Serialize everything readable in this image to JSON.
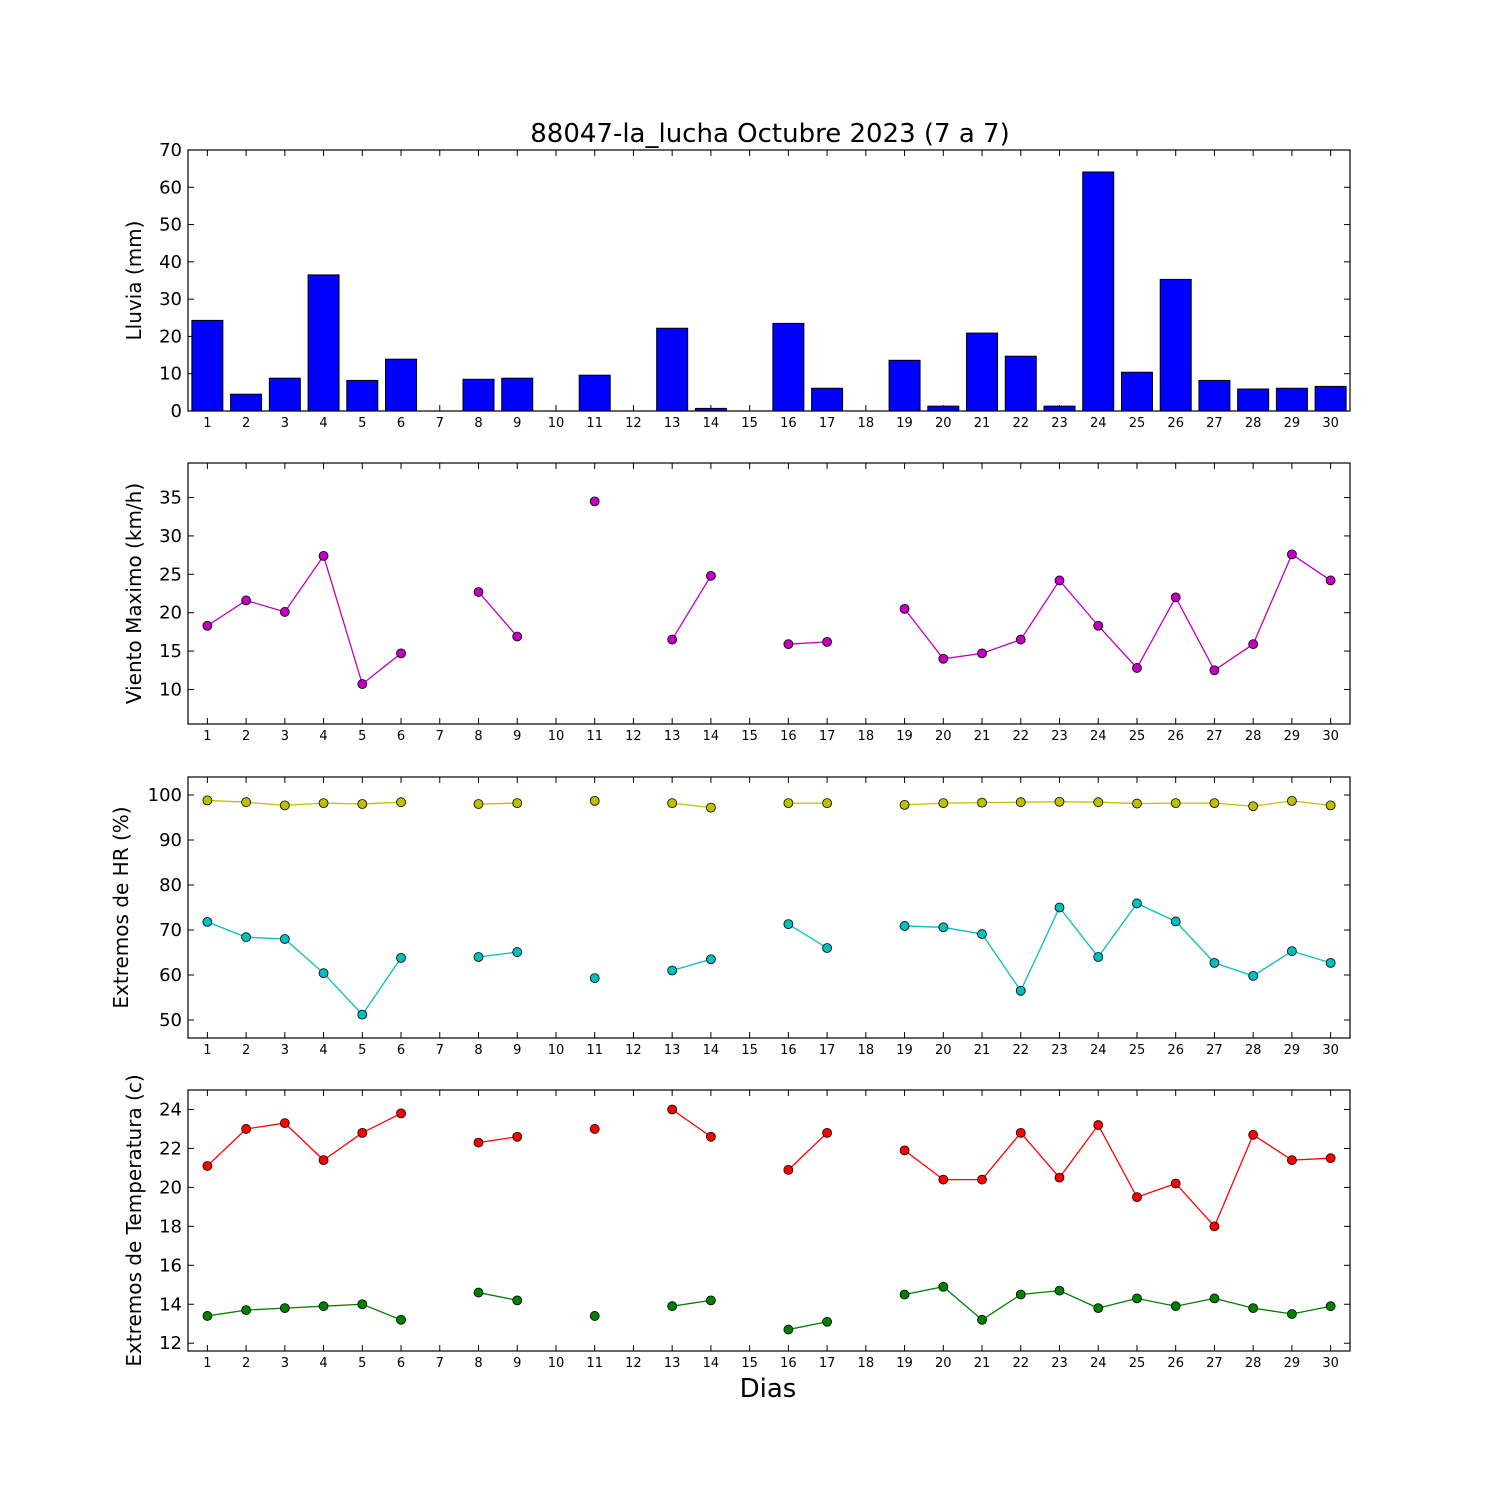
{
  "figure": {
    "title": "88047-la_lucha Octubre 2023  (7 a 7)",
    "xlabel": "Dias"
  },
  "chart_data": [
    {
      "type": "bar",
      "ylabel": "Lluvia (mm)",
      "ylim": [
        0,
        70
      ],
      "yticks": [
        0,
        10,
        20,
        30,
        40,
        50,
        60,
        70
      ],
      "xlim": [
        0.5,
        30.5
      ],
      "categories": [
        1,
        2,
        3,
        4,
        5,
        6,
        7,
        8,
        9,
        10,
        11,
        12,
        13,
        14,
        15,
        16,
        17,
        18,
        19,
        20,
        21,
        22,
        23,
        24,
        25,
        26,
        27,
        28,
        29,
        30
      ],
      "series": [
        {
          "color": "#0000ff",
          "values": [
            24.3,
            4.5,
            8.8,
            36.5,
            8.2,
            13.9,
            0,
            8.5,
            8.8,
            0,
            9.6,
            0,
            22.2,
            0.7,
            0,
            23.5,
            6.1,
            0,
            13.6,
            1.3,
            20.9,
            14.7,
            1.3,
            64.1,
            10.4,
            35.3,
            8.2,
            5.9,
            6.1,
            6.6
          ]
        }
      ]
    },
    {
      "type": "line",
      "ylabel": "Viento Maximo (km/h)",
      "ylim": [
        5.5,
        39.5
      ],
      "yticks": [
        10,
        15,
        20,
        25,
        30,
        35
      ],
      "xlim": [
        0.5,
        30.5
      ],
      "x": [
        1,
        2,
        3,
        4,
        5,
        6,
        7,
        8,
        9,
        10,
        11,
        12,
        13,
        14,
        15,
        16,
        17,
        18,
        19,
        20,
        21,
        22,
        23,
        24,
        25,
        26,
        27,
        28,
        29,
        30
      ],
      "series": [
        {
          "color": "#bf00bf",
          "values": [
            18.3,
            21.6,
            20.1,
            27.4,
            10.7,
            14.7,
            null,
            22.7,
            16.9,
            null,
            34.5,
            null,
            16.5,
            24.8,
            null,
            15.9,
            16.2,
            null,
            20.5,
            14.0,
            14.7,
            16.5,
            24.2,
            18.3,
            12.8,
            22.0,
            12.5,
            15.9,
            27.6,
            24.2
          ]
        }
      ]
    },
    {
      "type": "line",
      "ylabel": "Extremos de HR (%)",
      "ylim": [
        46,
        104
      ],
      "yticks": [
        50,
        60,
        70,
        80,
        90,
        100
      ],
      "xlim": [
        0.5,
        30.5
      ],
      "x": [
        1,
        2,
        3,
        4,
        5,
        6,
        7,
        8,
        9,
        10,
        11,
        12,
        13,
        14,
        15,
        16,
        17,
        18,
        19,
        20,
        21,
        22,
        23,
        24,
        25,
        26,
        27,
        28,
        29,
        30
      ],
      "series": [
        {
          "color": "#bfbf00",
          "values": [
            98.8,
            98.4,
            97.7,
            98.2,
            98.0,
            98.4,
            null,
            98.0,
            98.2,
            null,
            98.7,
            null,
            98.2,
            97.2,
            null,
            98.2,
            98.2,
            null,
            97.8,
            98.2,
            98.3,
            98.4,
            98.5,
            98.4,
            98.1,
            98.2,
            98.2,
            97.5,
            98.7,
            97.7
          ]
        },
        {
          "color": "#00bfbf",
          "values": [
            71.8,
            68.4,
            68.0,
            60.4,
            51.2,
            63.8,
            null,
            64.0,
            65.1,
            null,
            59.3,
            null,
            61.0,
            63.5,
            null,
            71.3,
            66.0,
            null,
            70.9,
            70.6,
            69.1,
            56.5,
            75.0,
            64.0,
            75.9,
            71.9,
            62.7,
            59.8,
            65.3,
            62.7
          ]
        }
      ]
    },
    {
      "type": "line",
      "ylabel": "Extremos de Temperatura (c)",
      "ylim": [
        11.6,
        25.0
      ],
      "yticks": [
        12,
        14,
        16,
        18,
        20,
        22,
        24
      ],
      "xlim": [
        0.5,
        30.5
      ],
      "x": [
        1,
        2,
        3,
        4,
        5,
        6,
        7,
        8,
        9,
        10,
        11,
        12,
        13,
        14,
        15,
        16,
        17,
        18,
        19,
        20,
        21,
        22,
        23,
        24,
        25,
        26,
        27,
        28,
        29,
        30
      ],
      "series": [
        {
          "color": "#ff0000",
          "values": [
            21.1,
            23.0,
            23.3,
            21.4,
            22.8,
            23.8,
            null,
            22.3,
            22.6,
            null,
            23.0,
            null,
            24.0,
            22.6,
            null,
            20.9,
            22.8,
            null,
            21.9,
            20.4,
            20.4,
            22.8,
            20.5,
            23.2,
            19.5,
            20.2,
            18.0,
            22.7,
            21.4,
            21.5
          ]
        },
        {
          "color": "#008000",
          "values": [
            13.4,
            13.7,
            13.8,
            13.9,
            14.0,
            13.2,
            null,
            14.6,
            14.2,
            null,
            13.4,
            null,
            13.9,
            14.2,
            null,
            12.7,
            13.1,
            null,
            14.5,
            14.9,
            13.2,
            14.5,
            14.7,
            13.8,
            14.3,
            13.9,
            14.3,
            13.8,
            13.5,
            13.9
          ]
        }
      ]
    }
  ]
}
